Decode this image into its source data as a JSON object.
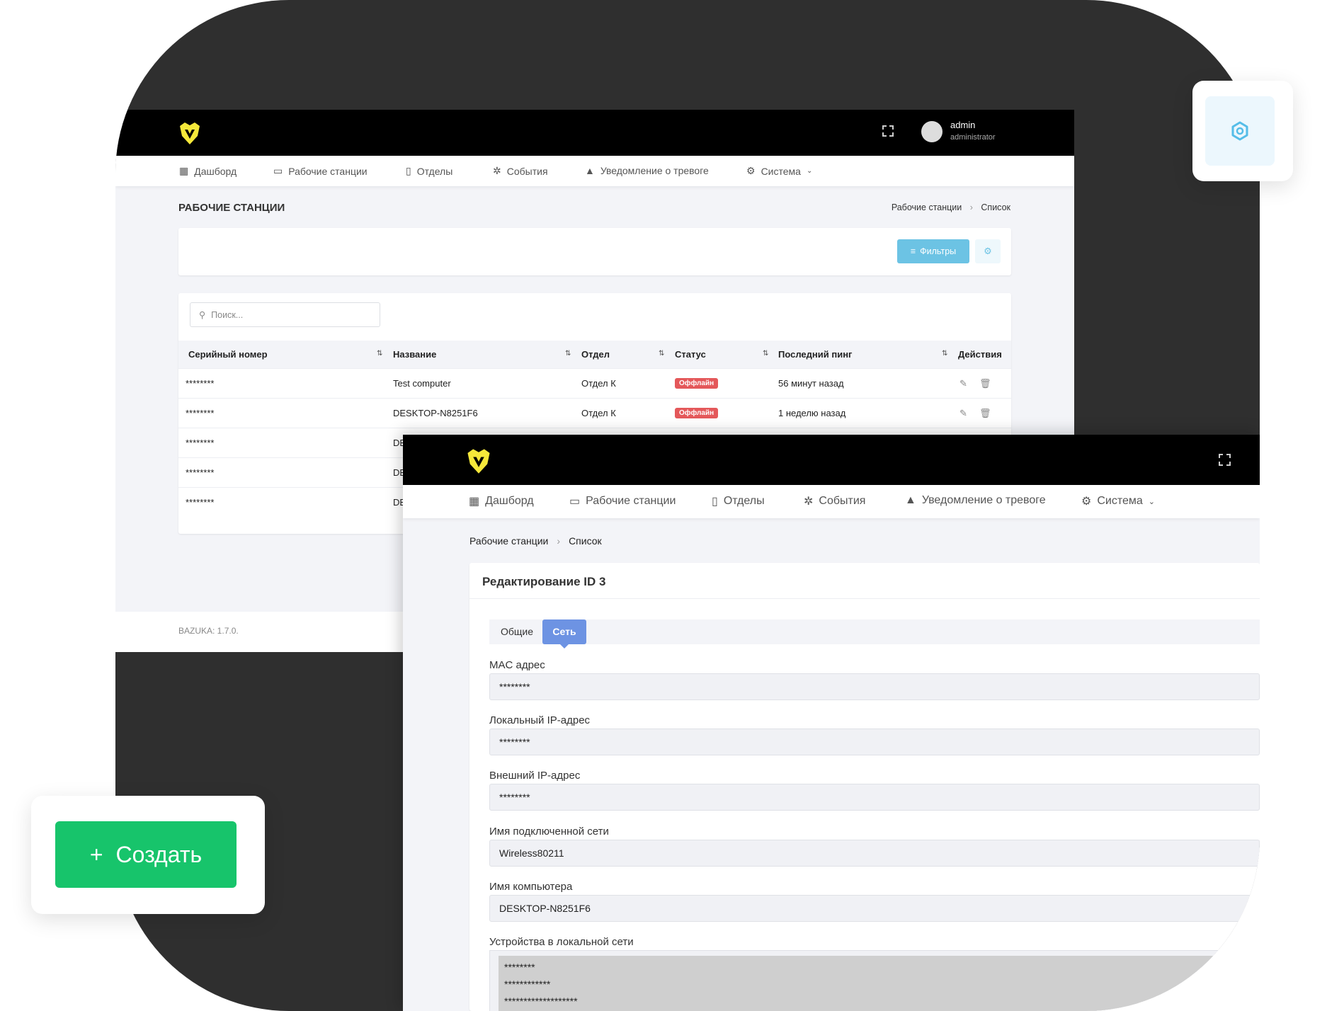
{
  "brand_colors": {
    "accent_yellow": "#f5e83a",
    "create_green": "#17c46b",
    "filter_blue": "#6cc3e4",
    "tab_active": "#6d93e3",
    "badge_red": "#e4585a"
  },
  "back_window": {
    "user": {
      "name": "admin",
      "role": "administrator"
    },
    "nav": [
      {
        "label": "Дашборд",
        "icon": "dashboard-icon"
      },
      {
        "label": "Рабочие станции",
        "icon": "monitor-icon"
      },
      {
        "label": "Отделы",
        "icon": "building-icon"
      },
      {
        "label": "События",
        "icon": "bug-icon"
      },
      {
        "label": "Уведомление о тревоге",
        "icon": "warning-icon"
      },
      {
        "label": "Система",
        "icon": "gear-icon"
      }
    ],
    "page_title": "РАБОЧИЕ СТАНЦИИ",
    "breadcrumb": [
      "Рабочие станции",
      "Список"
    ],
    "filters_label": "Фильтры",
    "search_placeholder": "Поиск...",
    "columns": [
      "Серийный номер",
      "Название",
      "Отдел",
      "Статус",
      "Последний пинг",
      "Действия"
    ],
    "rows": [
      {
        "serial": "********",
        "name": "Test computer",
        "dept": "Отдел К",
        "status": "Оффлайн",
        "ping": "56 минут назад"
      },
      {
        "serial": "********",
        "name": "DESKTOP-N8251F6",
        "dept": "Отдел К",
        "status": "Оффлайн",
        "ping": "1 неделю назад"
      },
      {
        "serial": "********",
        "name": "DE"
      },
      {
        "serial": "********",
        "name": "DE"
      },
      {
        "serial": "********",
        "name": "DE"
      }
    ],
    "footer": "BAZUKA: 1.7.0."
  },
  "front_window": {
    "nav": [
      {
        "label": "Дашборд"
      },
      {
        "label": "Рабочие станции"
      },
      {
        "label": "Отделы"
      },
      {
        "label": "События"
      },
      {
        "label": "Уведомление о тревоге"
      },
      {
        "label": "Система"
      }
    ],
    "breadcrumb": [
      "Рабочие станции",
      "Список"
    ],
    "title": "Редактирование ID 3",
    "tabs": [
      {
        "label": "Общие",
        "active": false
      },
      {
        "label": "Сеть",
        "active": true
      }
    ],
    "fields": [
      {
        "label": "MAC адрес",
        "value": "********"
      },
      {
        "label": "Локальный IP-адрес",
        "value": "********"
      },
      {
        "label": "Внешний IP-адрес",
        "value": "********"
      },
      {
        "label": "Имя подключенной сети",
        "value": "Wireless80211"
      },
      {
        "label": "Имя компьютера",
        "value": "DESKTOP-N8251F6"
      }
    ],
    "devices_label": "Устройства в локальной сети",
    "devices": [
      "********",
      "************",
      "*******************"
    ]
  },
  "create_button": {
    "icon": "plus-icon",
    "label": "Создать"
  }
}
